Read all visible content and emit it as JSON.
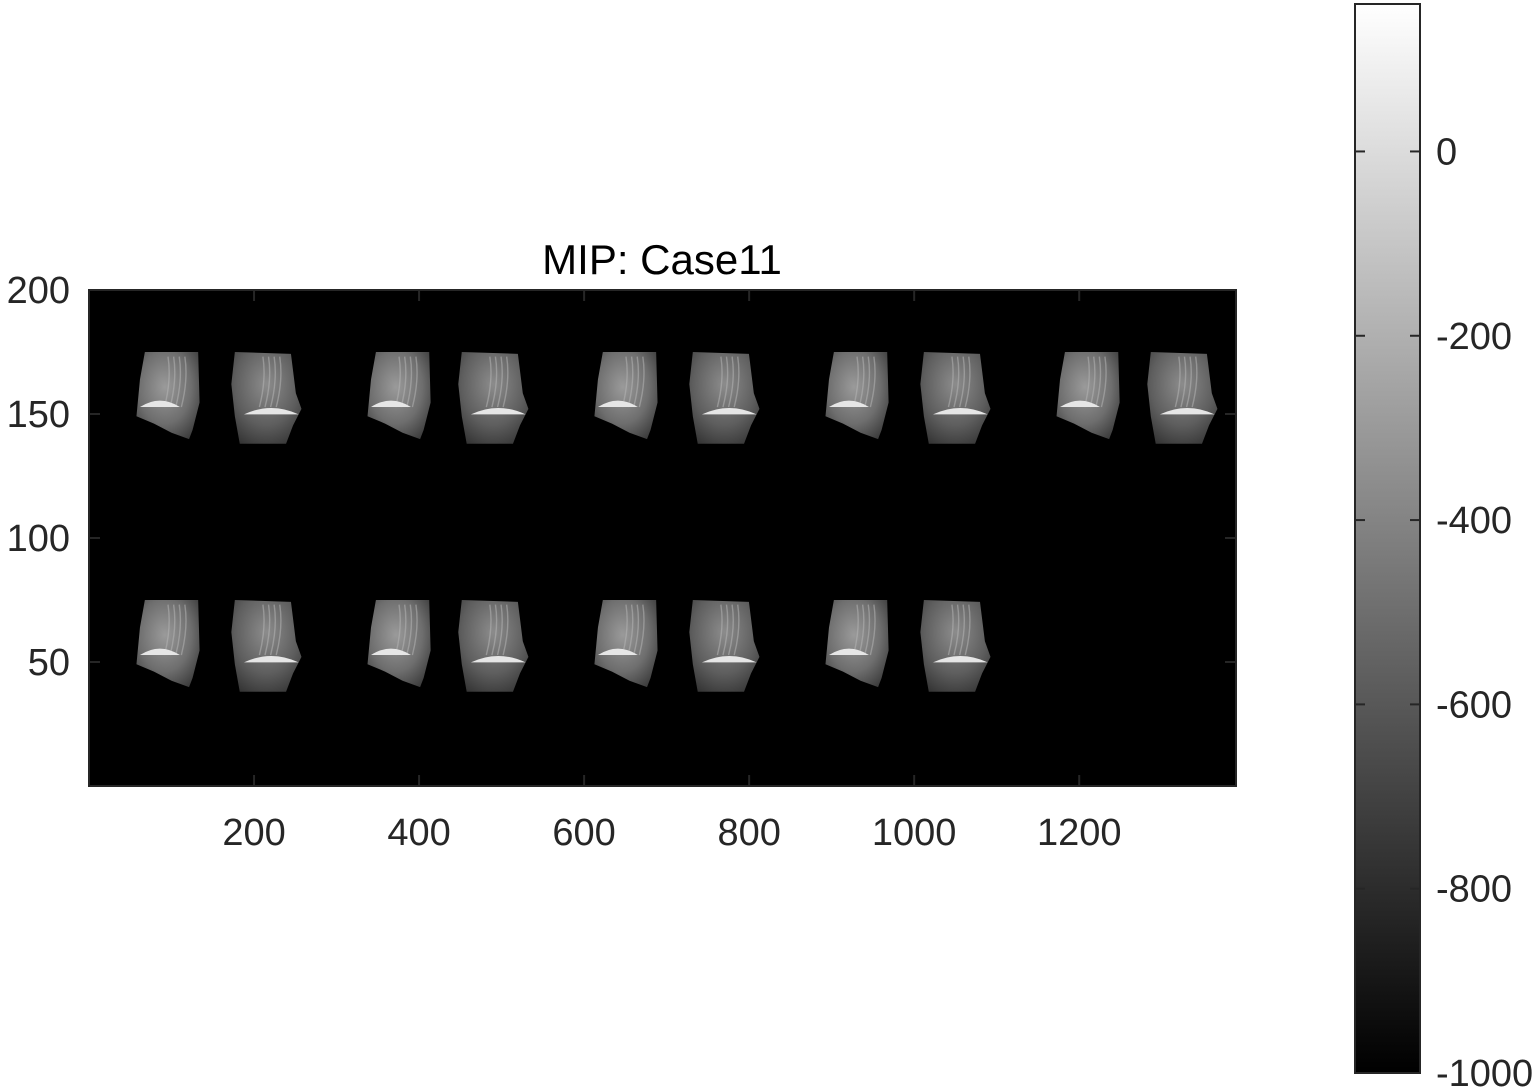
{
  "chart_data": {
    "type": "heatmap",
    "title": "MIP: Case11",
    "xlabel": "",
    "ylabel": "",
    "xlim": [
      0,
      1390
    ],
    "ylim": [
      0,
      200
    ],
    "y_direction": "normal",
    "grid": false,
    "x_ticks": [
      200,
      400,
      600,
      800,
      1000,
      1200
    ],
    "x_tick_labels": [
      "200",
      "400",
      "600",
      "800",
      "1000",
      "1200"
    ],
    "y_ticks": [
      50,
      100,
      150,
      200
    ],
    "y_tick_labels": [
      "50",
      "100",
      "150",
      "200"
    ],
    "background_color": "#000000",
    "colormap": "gray",
    "colorbar": {
      "location": "right",
      "clim": [
        -1000,
        160
      ],
      "ticks": [
        0,
        -200,
        -400,
        -600,
        -800,
        -1000
      ],
      "tick_labels": [
        "0",
        "-200",
        "-400",
        "-600",
        "-800",
        "-1000"
      ]
    },
    "panels": {
      "description_units": "data units",
      "width": 85,
      "top_row": {
        "y_top": 175,
        "y_bottom": 138,
        "x_centers": [
          100,
          215,
          380,
          490,
          655,
          770,
          935,
          1050,
          1215,
          1325
        ]
      },
      "bottom_row": {
        "y_top": 75,
        "y_bottom": 38,
        "x_centers": [
          100,
          215,
          380,
          490,
          655,
          770,
          935,
          1050
        ]
      }
    }
  }
}
